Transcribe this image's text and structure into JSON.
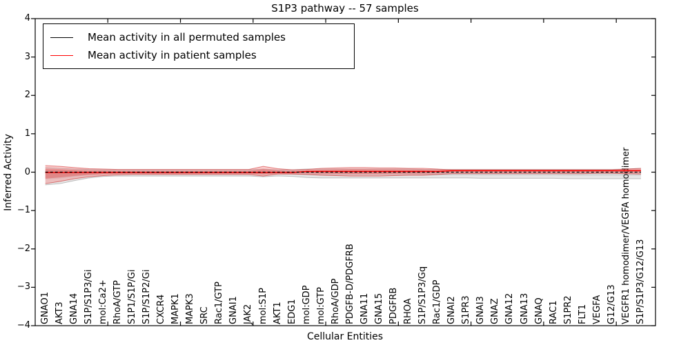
{
  "title": "S1P3 pathway -- 57 samples",
  "legend": {
    "items": [
      {
        "label": "Mean activity in all permuted samples",
        "color": "#000000"
      },
      {
        "label": "Mean activity in patient samples",
        "color": "#ff0000"
      }
    ]
  },
  "colors": {
    "frame": "#000000",
    "permuted_line": "#000000",
    "patient_line": "#ff0000",
    "patient_band_fill": "rgba(255,40,40,0.22)",
    "patient_band_inner_fill": "rgba(230,40,40,0.30)",
    "patient_band_edge": "rgba(200,30,30,0.55)",
    "permuted_band_fill": "rgba(120,120,120,0.18)",
    "permuted_band_inner_fill": "rgba(120,120,120,0.15)",
    "permuted_band_edge": "rgba(90,90,90,0.35)"
  },
  "chart_data": {
    "type": "line",
    "title": "S1P3 pathway -- 57 samples",
    "xlabel": "Cellular Entities",
    "ylabel": "Inferred Activity",
    "ylim": [
      -4,
      4
    ],
    "yticks": [
      -4,
      -3,
      -2,
      -1,
      0,
      1,
      2,
      3,
      4
    ],
    "xticks_numeric": [
      5,
      10,
      15,
      20,
      25,
      30,
      35,
      40
    ],
    "grid": false,
    "legend_position": "upper left",
    "categories": [
      "GNAO1",
      "AKT3",
      "GNA14",
      "S1P/S1P3/Gi",
      "mol:Ca2+",
      "RhoA/GTP",
      "S1P1/S1P/Gi",
      "S1P/S1P2/Gi",
      "CXCR4",
      "MAPK1",
      "MAPK3",
      "SRC",
      "Rac1/GTP",
      "GNAI1",
      "JAK2",
      "mol:S1P",
      "AKT1",
      "EDG1",
      "mol:GDP",
      "mol:GTP",
      "RhoA/GDP",
      "PDGFB-D/PDGFRB",
      "GNA11",
      "GNA15",
      "PDGFRB",
      "RHOA",
      "S1P/S1P3/Gq",
      "Rac1/GDP",
      "GNAI2",
      "S1PR3",
      "GNAI3",
      "GNAZ",
      "GNA12",
      "GNA13",
      "GNAQ",
      "RAC1",
      "S1PR2",
      "FLT1",
      "VEGFA",
      "G12/G13",
      "VEGFR1 homodimer/VEGFA homodimer",
      "S1P/S1P3/G12/G13"
    ],
    "series": [
      {
        "name": "Mean activity in all permuted samples",
        "style": "dashed",
        "values": [
          0,
          0,
          0,
          0,
          0,
          0,
          0,
          0,
          0,
          0,
          0,
          0,
          0,
          0,
          0,
          0,
          0,
          0,
          0,
          0,
          0,
          0,
          0,
          0,
          0,
          0,
          0,
          0,
          0,
          0,
          0,
          0,
          0,
          0,
          0,
          0,
          0,
          0,
          0,
          0,
          0,
          0
        ]
      },
      {
        "name": "Mean activity in patient samples",
        "style": "solid",
        "values": [
          -0.01,
          -0.01,
          -0.01,
          -0.01,
          -0.01,
          -0.01,
          -0.01,
          -0.01,
          -0.01,
          -0.01,
          -0.01,
          -0.01,
          -0.01,
          -0.01,
          -0.01,
          -0.01,
          -0.01,
          -0.01,
          0.02,
          0.02,
          0.02,
          0.02,
          0.02,
          0.02,
          0.02,
          0.02,
          0.02,
          0.02,
          0.04,
          0.04,
          0.04,
          0.04,
          0.04,
          0.04,
          0.04,
          0.04,
          0.04,
          0.04,
          0.04,
          0.04,
          0.04,
          0.04
        ]
      }
    ],
    "bands": [
      {
        "name": "permuted-activity-range",
        "upper": [
          0.12,
          0.1,
          0.08,
          0.07,
          0.06,
          0.06,
          0.06,
          0.06,
          0.06,
          0.06,
          0.06,
          0.06,
          0.06,
          0.06,
          0.06,
          0.08,
          0.06,
          0.06,
          0.08,
          0.08,
          0.08,
          0.08,
          0.08,
          0.08,
          0.08,
          0.08,
          0.07,
          0.07,
          0.07,
          0.07,
          0.07,
          0.07,
          0.07,
          0.07,
          0.07,
          0.07,
          0.07,
          0.07,
          0.07,
          0.07,
          0.08,
          0.1
        ],
        "lower": [
          -0.33,
          -0.3,
          -0.22,
          -0.15,
          -0.11,
          -0.1,
          -0.1,
          -0.1,
          -0.1,
          -0.1,
          -0.1,
          -0.1,
          -0.1,
          -0.1,
          -0.1,
          -0.12,
          -0.1,
          -0.11,
          -0.14,
          -0.15,
          -0.15,
          -0.15,
          -0.15,
          -0.15,
          -0.15,
          -0.15,
          -0.15,
          -0.15,
          -0.15,
          -0.15,
          -0.16,
          -0.16,
          -0.16,
          -0.16,
          -0.16,
          -0.16,
          -0.17,
          -0.17,
          -0.17,
          -0.17,
          -0.17,
          -0.17
        ]
      },
      {
        "name": "patient-activity-range",
        "upper": [
          0.17,
          0.15,
          0.12,
          0.09,
          0.08,
          0.07,
          0.07,
          0.07,
          0.07,
          0.07,
          0.07,
          0.07,
          0.07,
          0.07,
          0.07,
          0.15,
          0.09,
          0.06,
          0.07,
          0.1,
          0.11,
          0.12,
          0.12,
          0.11,
          0.11,
          0.1,
          0.1,
          0.08,
          0.06,
          0.06,
          0.06,
          0.06,
          0.06,
          0.06,
          0.06,
          0.06,
          0.06,
          0.06,
          0.06,
          0.06,
          0.08,
          0.1
        ],
        "lower": [
          -0.3,
          -0.24,
          -0.17,
          -0.12,
          -0.09,
          -0.07,
          -0.06,
          -0.06,
          -0.06,
          -0.06,
          -0.06,
          -0.06,
          -0.06,
          -0.06,
          -0.06,
          -0.1,
          -0.05,
          -0.05,
          -0.06,
          -0.08,
          -0.09,
          -0.1,
          -0.1,
          -0.1,
          -0.09,
          -0.08,
          -0.08,
          -0.06,
          -0.04,
          -0.04,
          -0.04,
          -0.04,
          -0.04,
          -0.04,
          -0.04,
          -0.04,
          -0.04,
          -0.04,
          -0.03,
          -0.03,
          -0.04,
          -0.05
        ]
      }
    ]
  }
}
